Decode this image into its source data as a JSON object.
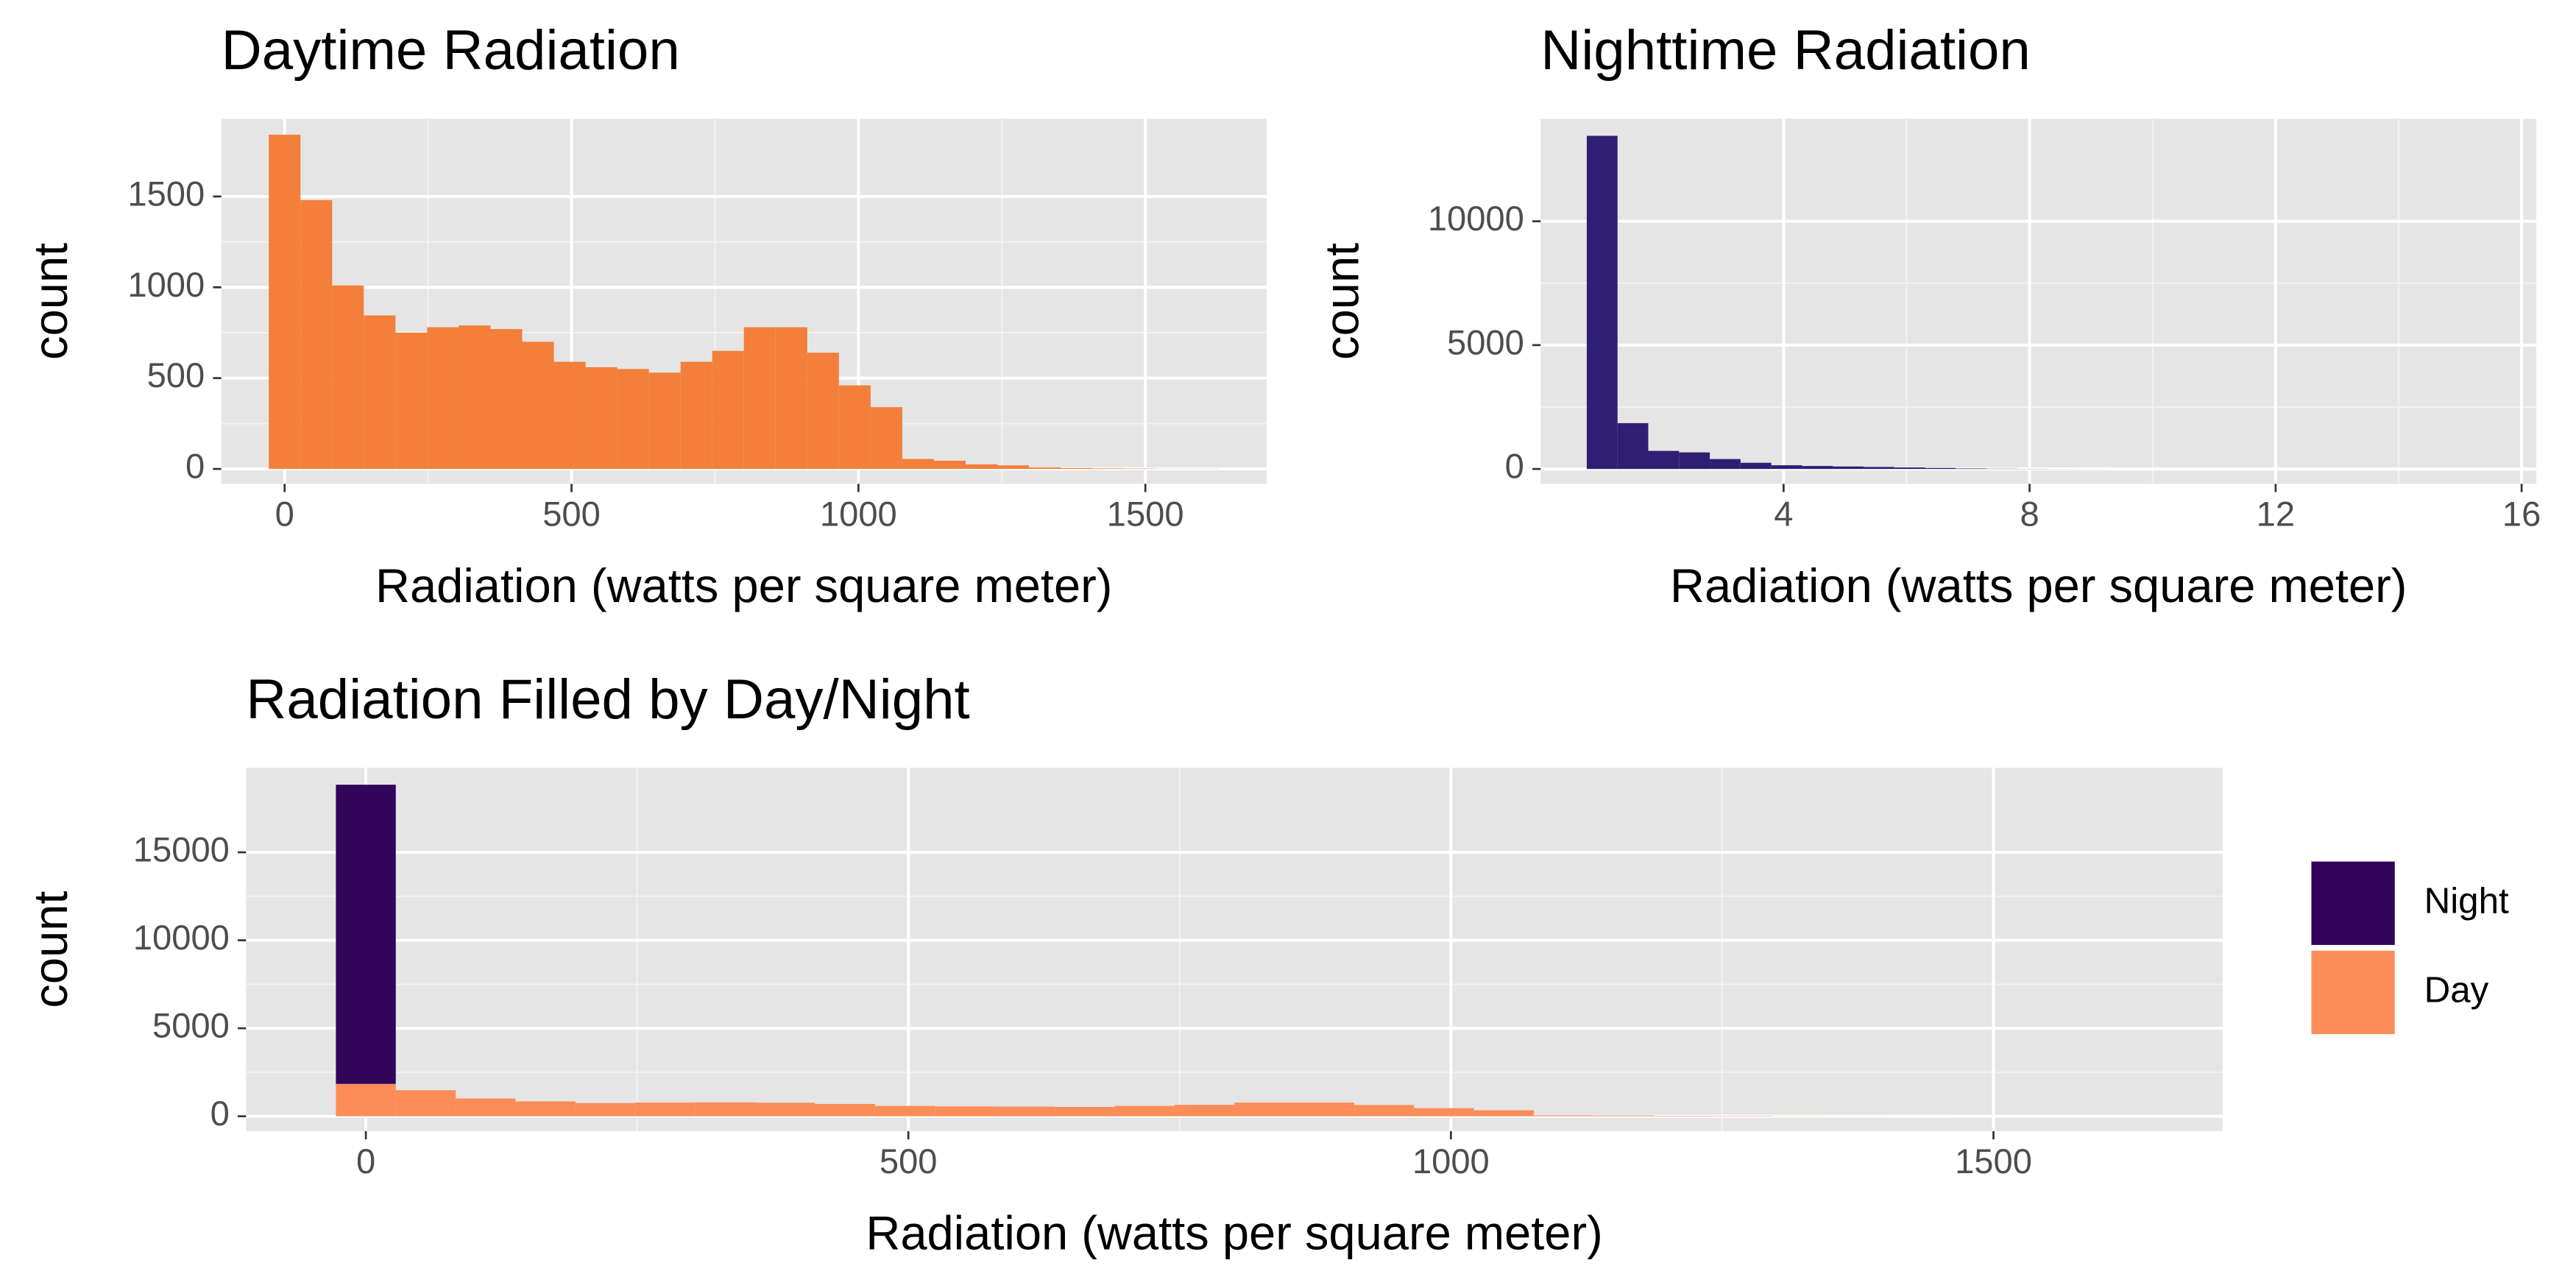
{
  "chart_data": [
    {
      "type": "histogram",
      "title": "Daytime Radiation",
      "x_label": "Radiation (watts per square meter)",
      "y_label": "count",
      "color": "#f37f3a",
      "bins": [
        -27.6,
        27.6,
        82.8,
        138,
        193.2,
        248.4,
        303.6,
        358.8,
        414,
        469.2,
        524.4,
        579.6,
        634.8,
        690,
        745.2,
        800.4,
        855.6,
        910.8,
        966,
        1021.2,
        1076.4,
        1131.6,
        1186.8,
        1242,
        1297.2,
        1352.4,
        1407.6,
        1462.8,
        1518,
        1573.2,
        1628.4
      ],
      "values": [
        1840,
        1480,
        1010,
        845,
        750,
        780,
        790,
        770,
        700,
        590,
        560,
        550,
        530,
        590,
        650,
        780,
        780,
        640,
        460,
        340,
        55,
        45,
        25,
        20,
        8,
        5,
        3,
        2,
        1,
        1
      ],
      "xlim": [
        -110.4,
        1711.2
      ],
      "xticks": [
        0,
        500,
        1000,
        1500
      ],
      "ylim": [
        -82,
        1927
      ],
      "yticks": [
        0,
        500,
        1000,
        1500
      ],
      "grid": true
    },
    {
      "type": "histogram",
      "title": "Nighttime Radiation",
      "x_label": "Radiation (watts per square meter)",
      "y_label": "count",
      "color": "#2e1f75",
      "bins": [
        0.8,
        1.3,
        1.8,
        2.3,
        2.8,
        3.3,
        3.8,
        4.3,
        4.8,
        5.3,
        5.8,
        6.3,
        6.8,
        7.3,
        7.8,
        8.3,
        8.8,
        9.3,
        9.8,
        10.3,
        10.8,
        11.3,
        11.8,
        12.3,
        12.8,
        13.3,
        13.8,
        14.3,
        14.8,
        15.3,
        15.8
      ],
      "values": [
        13450,
        1850,
        730,
        670,
        400,
        250,
        150,
        120,
        100,
        80,
        60,
        40,
        20,
        10,
        5,
        3,
        2,
        1,
        1,
        0,
        0,
        0,
        0,
        0,
        0,
        0,
        0,
        0,
        0,
        1
      ],
      "xlim": [
        0.05,
        16.24
      ],
      "xticks": [
        4,
        8,
        12,
        16
      ],
      "ylim": [
        -600,
        14133
      ],
      "yticks": [
        0,
        5000,
        10000
      ],
      "grid": true
    },
    {
      "type": "histogram",
      "stacked": true,
      "title": "Radiation Filled by Day/Night",
      "x_label": "Radiation (watts per square meter)",
      "y_label": "count",
      "legend": "right",
      "bins": [
        -27.6,
        27.6,
        82.8,
        138,
        193.2,
        248.4,
        303.6,
        358.8,
        414,
        469.2,
        524.4,
        579.6,
        634.8,
        690,
        745.2,
        800.4,
        855.6,
        910.8,
        966,
        1021.2,
        1076.4,
        1131.6,
        1186.8,
        1242,
        1297.2,
        1352.4,
        1407.6,
        1462.8,
        1518,
        1573.2,
        1628.4
      ],
      "series": [
        {
          "name": "Night",
          "color": "#30055a",
          "values": [
            17000,
            0,
            0,
            0,
            0,
            0,
            0,
            0,
            0,
            0,
            0,
            0,
            0,
            0,
            0,
            0,
            0,
            0,
            0,
            0,
            0,
            0,
            0,
            0,
            0,
            0,
            0,
            0,
            0,
            0
          ]
        },
        {
          "name": "Day",
          "color": "#fc8d59",
          "values": [
            1840,
            1480,
            1010,
            845,
            750,
            780,
            790,
            770,
            700,
            590,
            560,
            550,
            530,
            590,
            650,
            780,
            780,
            640,
            460,
            340,
            55,
            45,
            25,
            20,
            8,
            5,
            3,
            2,
            1,
            1
          ]
        }
      ],
      "xlim": [
        -110.4,
        1711.2
      ],
      "xticks": [
        0,
        500,
        1000,
        1500
      ],
      "ylim": [
        -845,
        19800
      ],
      "yticks": [
        0,
        5000,
        10000,
        15000
      ],
      "grid": true
    }
  ]
}
